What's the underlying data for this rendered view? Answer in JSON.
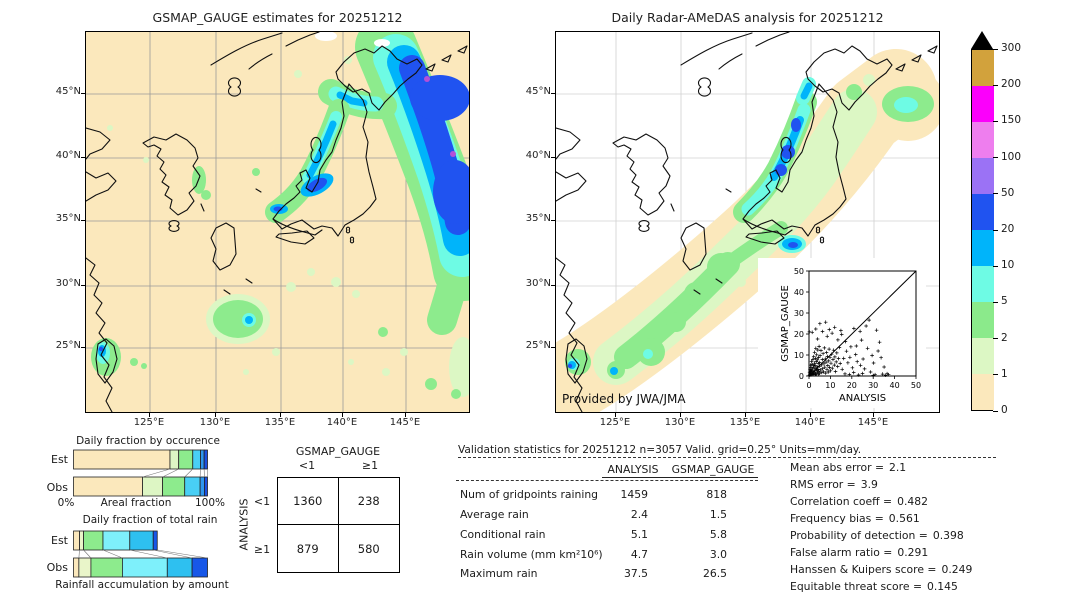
{
  "chart_data": [
    {
      "id": "left_map",
      "type": "map",
      "title": "GSMAP_GAUGE estimates for 20251212",
      "lat_ticks": [
        "45°N",
        "40°N",
        "35°N",
        "30°N",
        "25°N"
      ],
      "lon_ticks": [
        "125°E",
        "130°E",
        "135°E",
        "140°E",
        "145°E"
      ],
      "units": "mm/day"
    },
    {
      "id": "right_map",
      "type": "map",
      "title": "Daily Radar-AMeDAS analysis for 20251212",
      "lat_ticks": [
        "45°N",
        "40°N",
        "35°N",
        "30°N",
        "25°N"
      ],
      "lon_ticks": [
        "125°E",
        "130°E",
        "135°E",
        "140°E",
        "145°E"
      ],
      "credit": "Provided by JWA/JMA",
      "units": "mm/day"
    },
    {
      "id": "colorbar",
      "type": "colorbar",
      "levels": [
        0,
        1,
        2,
        5,
        10,
        20,
        50,
        100,
        150,
        200,
        300
      ],
      "labels_top_to_bottom": [
        "300",
        "200",
        "150",
        "100",
        "50",
        "20",
        "10",
        "5",
        "2",
        "1",
        "0"
      ],
      "colors_top_to_bottom": [
        "#D2A23C",
        "#FB00FB",
        "#EE7EEE",
        "#9B72F5",
        "#2053F0",
        "#00B4FA",
        "#6EFBE4",
        "#8BEA8B",
        "#DCF7C4",
        "#FBE8BC"
      ],
      "overflow_marker": "black-triangle"
    },
    {
      "id": "occurrence",
      "type": "bar",
      "stacked": true,
      "title": "Daily fraction by occurence",
      "rows": [
        "Est",
        "Obs"
      ],
      "x_left": "0%",
      "x_label": "Areal fraction",
      "x_right": "100%",
      "palette": [
        "#FBE8BC",
        "#DDF6C4",
        "#8DEB8D",
        "#49CFF5",
        "#2E96EE",
        "#1B50E0"
      ],
      "fracs": [
        [
          0.72,
          0.065,
          0.105,
          0.058,
          0.027,
          0.025
        ],
        [
          0.515,
          0.15,
          0.165,
          0.115,
          0.032,
          0.023
        ]
      ]
    },
    {
      "id": "totalrain",
      "type": "bar",
      "stacked": true,
      "title": "Daily fraction of total rain",
      "rows": [
        "Est",
        "Obs"
      ],
      "x_label": "Rainfall accumulation by amount",
      "palette": [
        "#FBE8BC",
        "#E9F5C9",
        "#8DEB8D",
        "#7EF0FB",
        "#2EC0F0",
        "#1757E8"
      ],
      "fracs": [
        [
          0.045,
          0.03,
          0.145,
          0.2,
          0.175,
          0.03
        ],
        [
          0.04,
          0.09,
          0.235,
          0.335,
          0.185,
          0.115
        ]
      ]
    },
    {
      "id": "scatter",
      "type": "scatter",
      "xlabel": "ANALYSIS",
      "ylabel": "GSMAP_GAUGE",
      "xlim": [
        0,
        50
      ],
      "ylim": [
        0,
        50
      ],
      "ticks": [
        0,
        10,
        20,
        30,
        40,
        50
      ],
      "diagonal": true,
      "points": [
        [
          0.2,
          0.4
        ],
        [
          0.3,
          1.8
        ],
        [
          0.4,
          0.9
        ],
        [
          0.5,
          3.1
        ],
        [
          0.6,
          1.4
        ],
        [
          0.7,
          5.2
        ],
        [
          0.8,
          2.3
        ],
        [
          0.9,
          0.5
        ],
        [
          1,
          4.1
        ],
        [
          1.1,
          1.9
        ],
        [
          1.2,
          6.8
        ],
        [
          1.3,
          2.7
        ],
        [
          1.4,
          0.8
        ],
        [
          1.5,
          5.5
        ],
        [
          1.6,
          3.4
        ],
        [
          1.7,
          1.2
        ],
        [
          1.8,
          7.9
        ],
        [
          1.9,
          2.1
        ],
        [
          2,
          0.6
        ],
        [
          2.1,
          4.8
        ],
        [
          2.2,
          9.2
        ],
        [
          2.3,
          1.5
        ],
        [
          2.4,
          3.9
        ],
        [
          2.5,
          6.1
        ],
        [
          2.6,
          11.3
        ],
        [
          2.7,
          2.4
        ],
        [
          2.8,
          0.7
        ],
        [
          2.9,
          5.1
        ],
        [
          3,
          8.4
        ],
        [
          3.1,
          1.1
        ],
        [
          3.2,
          13.2
        ],
        [
          3.3,
          3.6
        ],
        [
          3.4,
          6.9
        ],
        [
          3.5,
          0.9
        ],
        [
          3.6,
          10.1
        ],
        [
          3.7,
          2.8
        ],
        [
          3.8,
          4.4
        ],
        [
          3.9,
          7.7
        ],
        [
          4,
          1.6
        ],
        [
          4.1,
          12.4
        ],
        [
          4.2,
          3.2
        ],
        [
          4.3,
          5.9
        ],
        [
          4.4,
          0.8
        ],
        [
          4.5,
          8.8
        ],
        [
          4.6,
          2.2
        ],
        [
          4.7,
          14.1
        ],
        [
          4.8,
          4.6
        ],
        [
          4.9,
          1.3
        ],
        [
          5,
          6.4
        ],
        [
          5.2,
          9.7
        ],
        [
          5.4,
          2.9
        ],
        [
          5.6,
          12.1
        ],
        [
          5.8,
          5.3
        ],
        [
          6,
          1.7
        ],
        [
          6.2,
          7.8
        ],
        [
          6.4,
          3.5
        ],
        [
          6.6,
          10.6
        ],
        [
          6.8,
          2
        ],
        [
          7,
          5.8
        ],
        [
          7.2,
          13.4
        ],
        [
          7.4,
          4.2
        ],
        [
          7.6,
          8.1
        ],
        [
          7.8,
          1.4
        ],
        [
          8,
          6.6
        ],
        [
          8.2,
          11.2
        ],
        [
          8.4,
          3
        ],
        [
          8.6,
          9.3
        ],
        [
          8.8,
          5
        ],
        [
          9,
          1.9
        ],
        [
          9.2,
          7.2
        ],
        [
          9.4,
          12.8
        ],
        [
          9.6,
          4.1
        ],
        [
          9.8,
          8.9
        ],
        [
          10,
          2.5
        ],
        [
          10.3,
          6.1
        ],
        [
          10.6,
          10.4
        ],
        [
          10.9,
          3.7
        ],
        [
          11.2,
          7.9
        ],
        [
          11.5,
          12.3
        ],
        [
          11.8,
          5.2
        ],
        [
          12.1,
          9.1
        ],
        [
          12.4,
          2.1
        ],
        [
          12.7,
          6.7
        ],
        [
          13,
          11
        ],
        [
          13.4,
          4.5
        ],
        [
          13.8,
          8.3
        ],
        [
          14.2,
          13.6
        ],
        [
          14.6,
          6
        ],
        [
          1.5,
          20.8
        ],
        [
          3.2,
          22.4
        ],
        [
          5.1,
          24.9
        ],
        [
          6.3,
          21.2
        ],
        [
          7.8,
          25.6
        ],
        [
          9.5,
          22.1
        ],
        [
          10.8,
          20.4
        ],
        [
          12,
          23.2
        ],
        [
          0.2,
          21
        ],
        [
          4,
          17.6
        ],
        [
          8.5,
          18.9
        ],
        [
          13.5,
          17.2
        ],
        [
          15.3,
          19.8
        ],
        [
          17,
          16.4
        ],
        [
          14.9,
          21.6
        ],
        [
          15.5,
          3.2
        ],
        [
          16.2,
          8.4
        ],
        [
          16.8,
          1
        ],
        [
          17.5,
          11.8
        ],
        [
          18.2,
          6.3
        ],
        [
          18.9,
          0.7
        ],
        [
          19.6,
          13.9
        ],
        [
          20.3,
          3.9
        ],
        [
          21,
          22.6
        ],
        [
          21.8,
          10.2
        ],
        [
          22.5,
          6.8
        ],
        [
          23.2,
          0.5
        ],
        [
          23.9,
          21.3
        ],
        [
          24.6,
          17.1
        ],
        [
          25.3,
          8.1
        ],
        [
          26,
          3.4
        ],
        [
          26.7,
          23.8
        ],
        [
          27.4,
          13.2
        ],
        [
          28.1,
          26.6
        ],
        [
          28.8,
          1.9
        ],
        [
          29.5,
          9.8
        ],
        [
          30.2,
          6.2
        ],
        [
          30.9,
          0.6
        ],
        [
          31.6,
          21.8
        ],
        [
          32.3,
          11.9
        ],
        [
          33,
          16.1
        ],
        [
          33.7,
          8.7
        ],
        [
          34.4,
          0.9
        ],
        [
          35.1,
          4.3
        ],
        [
          35.8,
          0.4
        ],
        [
          36.5,
          1.1
        ],
        [
          37.2,
          0.6
        ],
        [
          30,
          0.3
        ],
        [
          25,
          1.2
        ],
        [
          20.9,
          1.6
        ],
        [
          22.1,
          14.3
        ],
        [
          19.1,
          8.9
        ],
        [
          24.1,
          5.1
        ]
      ]
    },
    {
      "id": "contingency",
      "type": "table",
      "col_header": "GSMAP_GAUGE",
      "row_header": "ANALYSIS",
      "col_labels": [
        "<1",
        "≥1"
      ],
      "row_labels": [
        "<1",
        "≥1"
      ],
      "values": [
        [
          1360,
          238
        ],
        [
          879,
          580
        ]
      ]
    },
    {
      "id": "stats",
      "type": "table",
      "title": "Validation statistics for 20251212  n=3057 Valid. grid=0.25° Units=mm/day.",
      "columns": [
        "ANALYSIS",
        "GSMAP_GAUGE"
      ],
      "rows": [
        {
          "label": "Num of gridpoints raining",
          "a": "1459",
          "g": "818"
        },
        {
          "label": "Average rain",
          "a": "2.4",
          "g": "1.5"
        },
        {
          "label": "Conditional rain",
          "a": "5.1",
          "g": "5.8"
        },
        {
          "label": "Rain volume (mm km²10⁶)",
          "a": "4.7",
          "g": "3.0"
        },
        {
          "label": "Maximum rain",
          "a": "37.5",
          "g": "26.5"
        }
      ],
      "scores": [
        {
          "label": "Mean abs error =",
          "value": "2.1"
        },
        {
          "label": "RMS error =",
          "value": "3.9"
        },
        {
          "label": "Correlation coeff =",
          "value": "0.482"
        },
        {
          "label": "Frequency bias =",
          "value": "0.561"
        },
        {
          "label": "Probability of detection =",
          "value": "0.398"
        },
        {
          "label": "False alarm ratio =",
          "value": "0.291"
        },
        {
          "label": "Hanssen & Kuipers score =",
          "value": "0.249"
        },
        {
          "label": "Equitable threat score =",
          "value": "0.145"
        }
      ]
    }
  ]
}
